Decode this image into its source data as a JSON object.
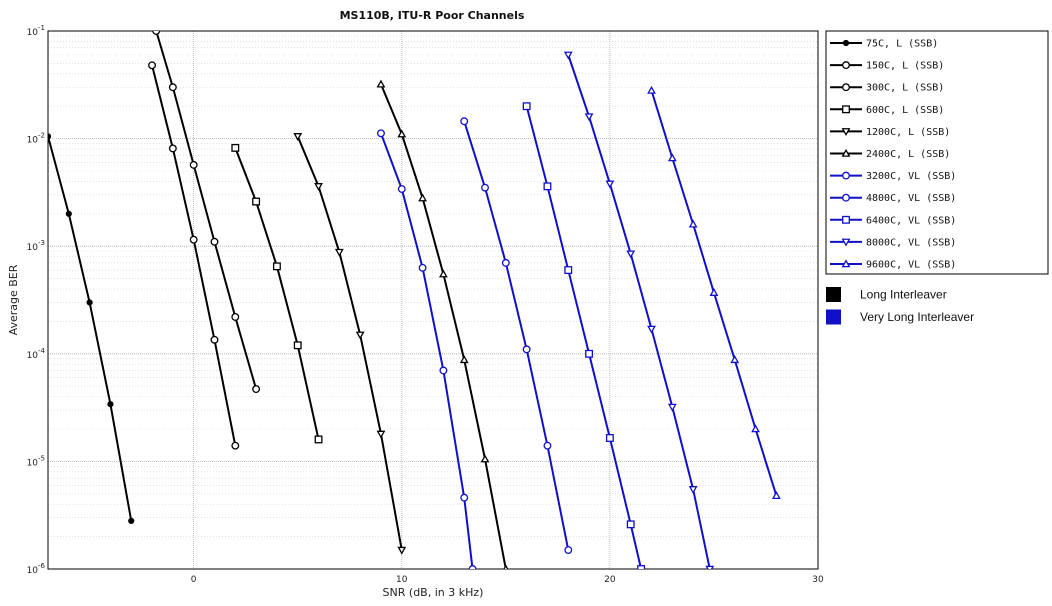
{
  "chart_data": {
    "type": "line",
    "title": "MS110B, ITU-R Poor Channels",
    "xlabel": "SNR (dB, in 3 kHz)",
    "ylabel": "Average BER",
    "xlim": [
      -7,
      30
    ],
    "ylim": [
      1e-06,
      0.1
    ],
    "yscale": "log",
    "grid": true,
    "legend_position": "right",
    "x_ticks": [
      0,
      10,
      20,
      30
    ],
    "y_ticks": [
      {
        "base": "10",
        "exp": "-1",
        "value": 0.1
      },
      {
        "base": "10",
        "exp": "-2",
        "value": 0.01
      },
      {
        "base": "10",
        "exp": "-3",
        "value": 0.001
      },
      {
        "base": "10",
        "exp": "-4",
        "value": 0.0001
      },
      {
        "base": "10",
        "exp": "-5",
        "value": 1e-05
      },
      {
        "base": "10",
        "exp": "-6",
        "value": 1e-06
      }
    ],
    "series": [
      {
        "name": "75C, L (SSB)",
        "color": "#000000",
        "marker": "dot",
        "x": [
          -7,
          -6,
          -5,
          -4,
          -3
        ],
        "y": [
          0.0105,
          0.002,
          0.0003,
          3.4e-05,
          2.8e-06
        ]
      },
      {
        "name": "150C, L (SSB)",
        "color": "#000000",
        "marker": "circle",
        "x": [
          -2,
          -1,
          0,
          1,
          2
        ],
        "y": [
          0.048,
          0.0081,
          0.00115,
          0.000135,
          1.4e-05
        ]
      },
      {
        "name": "300C, L (SSB)",
        "color": "#000000",
        "marker": "circle",
        "x": [
          -1.8,
          -1,
          0,
          1,
          2,
          3
        ],
        "y": [
          0.1,
          0.03,
          0.0057,
          0.0011,
          0.00022,
          4.7e-05
        ]
      },
      {
        "name": "600C, L (SSB)",
        "color": "#000000",
        "marker": "square",
        "x": [
          2,
          3,
          4,
          5,
          6
        ],
        "y": [
          0.0082,
          0.0026,
          0.00065,
          0.00012,
          1.6e-05
        ]
      },
      {
        "name": "1200C, L (SSB)",
        "color": "#000000",
        "marker": "triangle-down",
        "x": [
          5,
          6,
          7,
          8,
          9,
          10
        ],
        "y": [
          0.0105,
          0.0036,
          0.00088,
          0.00015,
          1.8e-05,
          1.5e-06
        ]
      },
      {
        "name": "2400C, L (SSB)",
        "color": "#000000",
        "marker": "triangle-up",
        "x": [
          9,
          10,
          11,
          12,
          13,
          14,
          15
        ],
        "y": [
          0.032,
          0.011,
          0.0028,
          0.00055,
          8.8e-05,
          1.05e-05,
          1e-06
        ]
      },
      {
        "name": "3200C, VL (SSB)",
        "color": "#1010c8",
        "marker": "circle",
        "x": [
          9,
          10,
          11,
          12,
          13,
          13.4
        ],
        "y": [
          0.0112,
          0.0034,
          0.00063,
          7e-05,
          4.6e-06,
          1e-06
        ]
      },
      {
        "name": "4800C, VL (SSB)",
        "color": "#1010c8",
        "marker": "circle",
        "x": [
          13,
          14,
          15,
          16,
          17,
          18
        ],
        "y": [
          0.0145,
          0.0035,
          0.0007,
          0.00011,
          1.4e-05,
          1.5e-06
        ]
      },
      {
        "name": "6400C, VL (SSB)",
        "color": "#1010c8",
        "marker": "square",
        "x": [
          16,
          17,
          18,
          19,
          20,
          21,
          21.5
        ],
        "y": [
          0.02,
          0.0036,
          0.0006,
          0.0001,
          1.65e-05,
          2.6e-06,
          1e-06
        ]
      },
      {
        "name": "8000C, VL (SSB)",
        "color": "#1010c8",
        "marker": "triangle-down",
        "x": [
          18,
          19,
          20,
          21,
          22,
          23,
          24,
          24.8
        ],
        "y": [
          0.06,
          0.016,
          0.0038,
          0.00085,
          0.00017,
          3.2e-05,
          5.5e-06,
          1e-06
        ]
      },
      {
        "name": "9600C, VL (SSB)",
        "color": "#1010c8",
        "marker": "triangle-up",
        "x": [
          22,
          23,
          24,
          25,
          26,
          27,
          28
        ],
        "y": [
          0.028,
          0.0066,
          0.0016,
          0.00037,
          8.8e-05,
          2e-05,
          4.8e-06
        ]
      }
    ],
    "key": [
      {
        "label": "Long Interleaver",
        "color": "#000000"
      },
      {
        "label": "Very Long Interleaver",
        "color": "#1010c8"
      }
    ]
  }
}
